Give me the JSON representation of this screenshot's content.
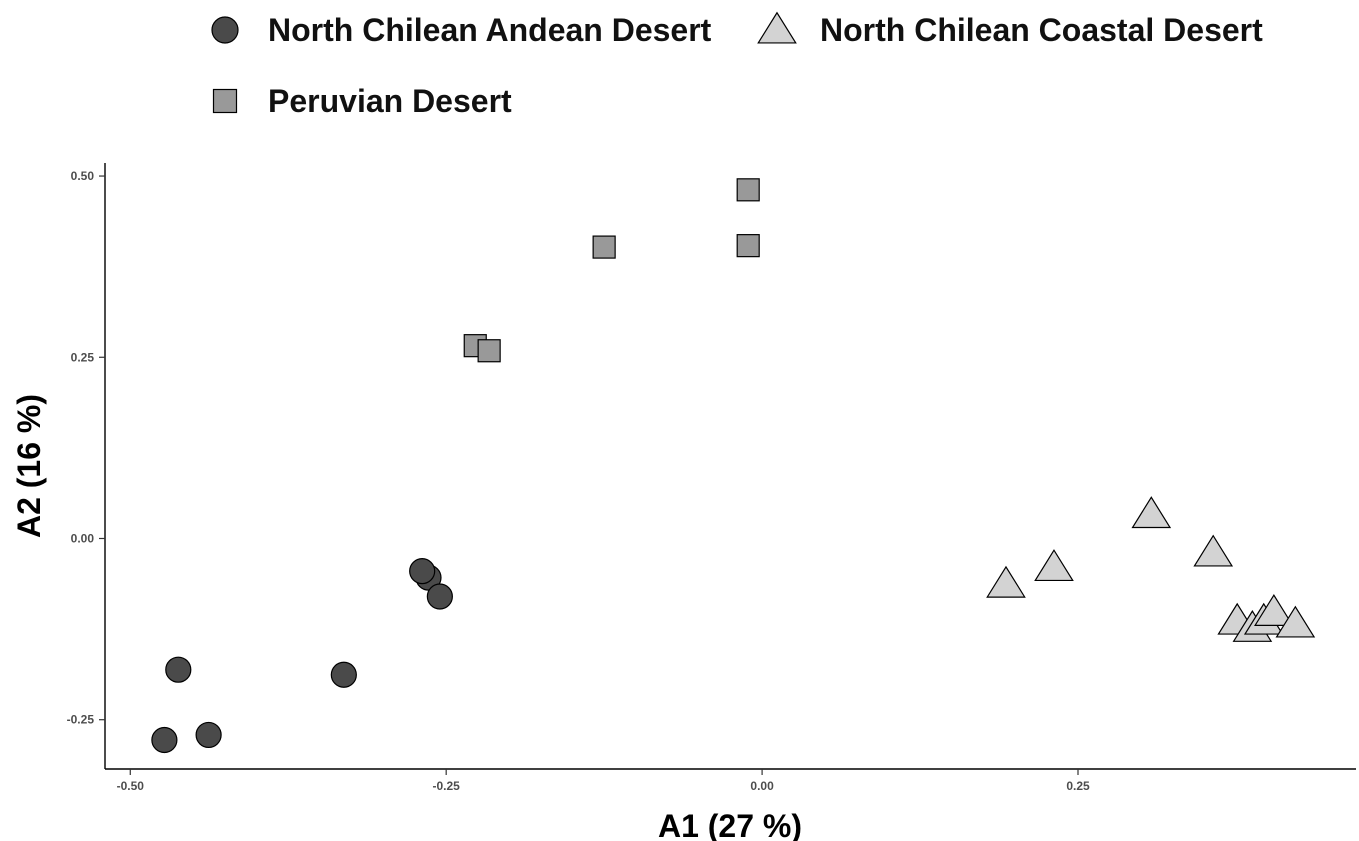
{
  "chart_data": {
    "type": "scatter",
    "title": "",
    "xlabel": "A1 (27 %)",
    "ylabel": "A2 (16 %)",
    "xlim": [
      -0.52,
      0.47
    ],
    "ylim": [
      -0.318,
      0.518
    ],
    "xticks": [
      -0.5,
      -0.25,
      0.0,
      0.25
    ],
    "xtick_labels": [
      "-0.50",
      "-0.25",
      "0.00",
      "0.25"
    ],
    "yticks": [
      -0.25,
      0.0,
      0.25,
      0.5
    ],
    "ytick_labels": [
      "-0.25",
      "0.00",
      "0.25",
      "0.50"
    ],
    "grid": false,
    "legend_position": "top",
    "series": [
      {
        "name": "North Chilean Andean Desert",
        "marker": "circle",
        "color": "#4a4a4a",
        "points": [
          {
            "x": -0.462,
            "y": -0.181
          },
          {
            "x": -0.473,
            "y": -0.278
          },
          {
            "x": -0.438,
            "y": -0.271
          },
          {
            "x": -0.331,
            "y": -0.188
          },
          {
            "x": -0.264,
            "y": -0.054
          },
          {
            "x": -0.269,
            "y": -0.045
          },
          {
            "x": -0.255,
            "y": -0.08
          }
        ]
      },
      {
        "name": "North Chilean Coastal Desert",
        "marker": "triangle",
        "color": "#d3d3d3",
        "points": [
          {
            "x": 0.193,
            "y": -0.063
          },
          {
            "x": 0.231,
            "y": -0.04
          },
          {
            "x": 0.308,
            "y": 0.033
          },
          {
            "x": 0.357,
            "y": -0.02
          },
          {
            "x": 0.376,
            "y": -0.114
          },
          {
            "x": 0.388,
            "y": -0.124
          },
          {
            "x": 0.397,
            "y": -0.114
          },
          {
            "x": 0.405,
            "y": -0.102
          },
          {
            "x": 0.422,
            "y": -0.118
          }
        ]
      },
      {
        "name": "Peruvian Desert",
        "marker": "square",
        "color": "#999999",
        "points": [
          {
            "x": -0.227,
            "y": 0.266
          },
          {
            "x": -0.216,
            "y": 0.259
          },
          {
            "x": -0.125,
            "y": 0.402
          },
          {
            "x": -0.011,
            "y": 0.481
          },
          {
            "x": -0.011,
            "y": 0.404
          }
        ]
      }
    ]
  }
}
